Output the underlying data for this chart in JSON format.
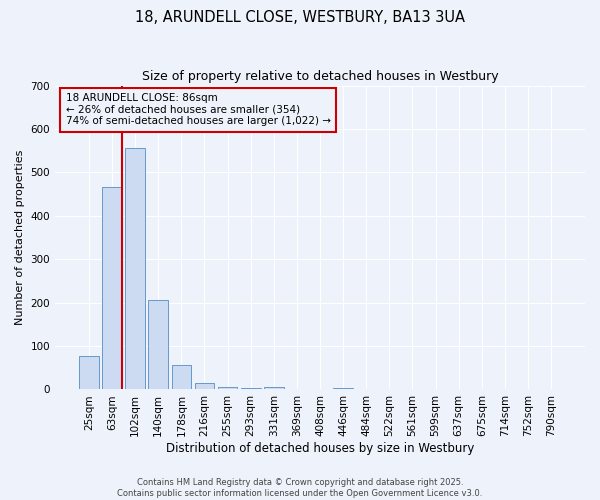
{
  "title": "18, ARUNDELL CLOSE, WESTBURY, BA13 3UA",
  "subtitle": "Size of property relative to detached houses in Westbury",
  "xlabel": "Distribution of detached houses by size in Westbury",
  "ylabel": "Number of detached properties",
  "bar_color": "#ccdaf2",
  "bar_edge_color": "#6699cc",
  "background_color": "#eef2fa",
  "grid_color": "#ffffff",
  "categories": [
    "25sqm",
    "63sqm",
    "102sqm",
    "140sqm",
    "178sqm",
    "216sqm",
    "255sqm",
    "293sqm",
    "331sqm",
    "369sqm",
    "408sqm",
    "446sqm",
    "484sqm",
    "522sqm",
    "561sqm",
    "599sqm",
    "637sqm",
    "675sqm",
    "714sqm",
    "752sqm",
    "790sqm"
  ],
  "values": [
    78,
    467,
    557,
    207,
    57,
    14,
    5,
    3,
    5,
    0,
    0,
    3,
    0,
    0,
    0,
    0,
    0,
    0,
    0,
    0,
    0
  ],
  "ylim": [
    0,
    700
  ],
  "yticks": [
    0,
    100,
    200,
    300,
    400,
    500,
    600,
    700
  ],
  "property_line_x": 1.45,
  "property_line_color": "#cc0000",
  "annotation_title": "18 ARUNDELL CLOSE: 86sqm",
  "annotation_line1": "← 26% of detached houses are smaller (354)",
  "annotation_line2": "74% of semi-detached houses are larger (1,022) →",
  "annotation_box_color": "#cc0000",
  "footer_line1": "Contains HM Land Registry data © Crown copyright and database right 2025.",
  "footer_line2": "Contains public sector information licensed under the Open Government Licence v3.0."
}
